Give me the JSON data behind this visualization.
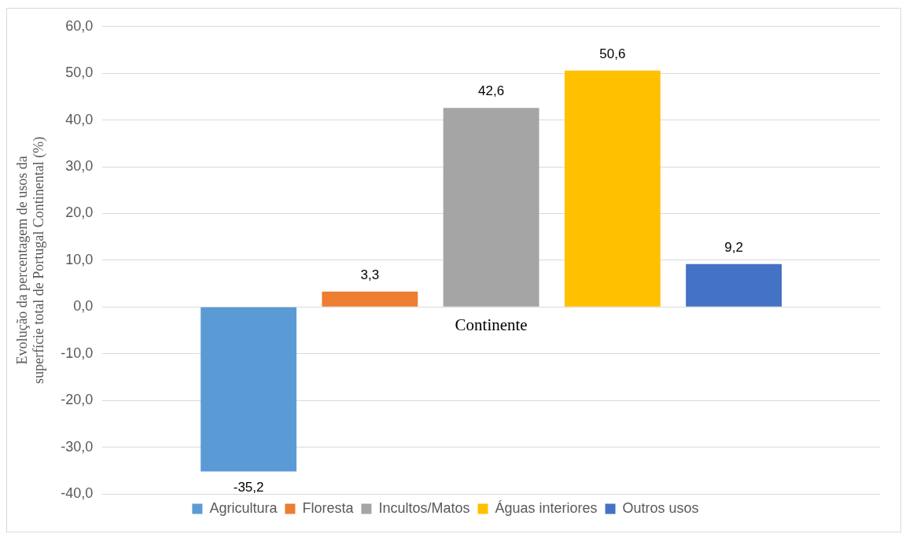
{
  "chart_data": {
    "type": "bar",
    "ylabel": "Evolução da percentagem de usos da superfície total de Portugal Continental (%)",
    "categories": [
      "Continente"
    ],
    "series": [
      {
        "name": "Agricultura",
        "color": "#5b9bd5",
        "values": [
          -35.2
        ],
        "value_labels": [
          "-35,2"
        ]
      },
      {
        "name": "Floresta",
        "color": "#ed7d31",
        "values": [
          3.3
        ],
        "value_labels": [
          "3,3"
        ]
      },
      {
        "name": "Incultos/Matos",
        "color": "#a5a5a5",
        "values": [
          42.6
        ],
        "value_labels": [
          "42,6"
        ]
      },
      {
        "name": "Águas interiores",
        "color": "#ffc000",
        "values": [
          50.6
        ],
        "value_labels": [
          "50,6"
        ]
      },
      {
        "name": "Outros usos",
        "color": "#4472c4",
        "values": [
          9.2
        ],
        "value_labels": [
          "9,2"
        ]
      }
    ],
    "ylim": [
      -40,
      60
    ],
    "yticks": [
      {
        "value": -40,
        "label": "-40,0"
      },
      {
        "value": -30,
        "label": "-30,0"
      },
      {
        "value": -20,
        "label": "-20,0"
      },
      {
        "value": -10,
        "label": "-10,0"
      },
      {
        "value": 0,
        "label": "0,0"
      },
      {
        "value": 10,
        "label": "10,0"
      },
      {
        "value": 20,
        "label": "20,0"
      },
      {
        "value": 30,
        "label": "30,0"
      },
      {
        "value": 40,
        "label": "40,0"
      },
      {
        "value": 50,
        "label": "50,0"
      },
      {
        "value": 60,
        "label": "60,0"
      }
    ],
    "grid": "y",
    "legend": "bottom"
  }
}
